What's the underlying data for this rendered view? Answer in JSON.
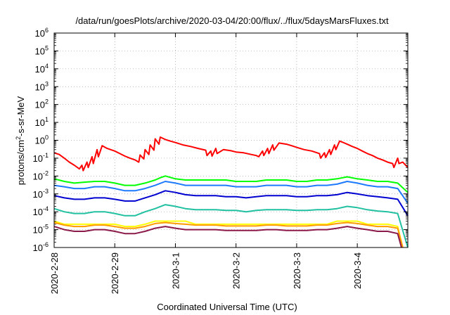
{
  "chart_data": {
    "type": "line",
    "title": "/data/run/goesPlots/archive/2020-03-04/20:00/flux/../flux/5daysMarsFluxes.txt",
    "xlabel": "Coordinated Universal Time (UTC)",
    "ylabel": {
      "prefix": "protons/cm",
      "superscript": "2",
      "suffix": "-s-sr-MeV"
    },
    "yscale": "log",
    "ylim": [
      1e-06,
      1000000.0
    ],
    "y_ticks": [
      {
        "value": 1e-06,
        "base": "10",
        "exp": "-6"
      },
      {
        "value": 1e-05,
        "base": "10",
        "exp": "-5"
      },
      {
        "value": 0.0001,
        "base": "10",
        "exp": "-4"
      },
      {
        "value": 0.001,
        "base": "10",
        "exp": "-3"
      },
      {
        "value": 0.01,
        "base": "10",
        "exp": "-2"
      },
      {
        "value": 0.1,
        "base": "10",
        "exp": "-1"
      },
      {
        "value": 1,
        "base": "10",
        "exp": "0"
      },
      {
        "value": 10.0,
        "base": "10",
        "exp": "1"
      },
      {
        "value": 100.0,
        "base": "10",
        "exp": "2"
      },
      {
        "value": 1000.0,
        "base": "10",
        "exp": "3"
      },
      {
        "value": 10000.0,
        "base": "10",
        "exp": "4"
      },
      {
        "value": 100000.0,
        "base": "10",
        "exp": "5"
      },
      {
        "value": 1000000.0,
        "base": "10",
        "exp": "6"
      }
    ],
    "xlim": [
      "2020-02-28 00:00",
      "2020-03-04 20:00"
    ],
    "x_ticks": [
      "2020-2-28",
      "2020-2-29",
      "2020-3-1",
      "2020-3-2",
      "2020-3-3",
      "2020-3-4"
    ],
    "grid": true,
    "series": [
      {
        "color": "#ff0000",
        "width": 2,
        "x": [
          "2020-02-28 00:00",
          "2020-02-28 02:00",
          "2020-02-28 04:00",
          "2020-02-28 06:00",
          "2020-02-28 08:00",
          "2020-02-28 10:00",
          "2020-02-28 11:00",
          "2020-02-28 11:30",
          "2020-02-28 13:00",
          "2020-02-28 13:30",
          "2020-02-28 15:00",
          "2020-02-28 15:30",
          "2020-02-28 17:00",
          "2020-02-28 17:30",
          "2020-02-28 19:00",
          "2020-02-28 21:00",
          "2020-02-29 00:00",
          "2020-02-29 02:00",
          "2020-02-29 04:00",
          "2020-02-29 06:00",
          "2020-02-29 08:00",
          "2020-02-29 09:30",
          "2020-02-29 10:00",
          "2020-02-29 11:30",
          "2020-02-29 12:00",
          "2020-02-29 13:30",
          "2020-02-29 14:00",
          "2020-02-29 15:30",
          "2020-02-29 16:00",
          "2020-02-29 17:30",
          "2020-02-29 18:00",
          "2020-02-29 20:00",
          "2020-02-29 22:00",
          "2020-03-01 00:00",
          "2020-03-01 03:00",
          "2020-03-01 06:00",
          "2020-03-01 09:00",
          "2020-03-01 12:00",
          "2020-03-01 12:30",
          "2020-03-01 14:00",
          "2020-03-01 14:30",
          "2020-03-01 16:00",
          "2020-03-01 16:30",
          "2020-03-01 19:00",
          "2020-03-01 22:00",
          "2020-03-02 00:00",
          "2020-03-02 03:00",
          "2020-03-02 06:00",
          "2020-03-02 08:00",
          "2020-03-02 09:00",
          "2020-03-02 10:30",
          "2020-03-02 11:00",
          "2020-03-02 12:30",
          "2020-03-02 13:00",
          "2020-03-02 14:30",
          "2020-03-02 15:00",
          "2020-03-02 17:00",
          "2020-03-02 20:00",
          "2020-03-02 22:00",
          "2020-03-03 00:00",
          "2020-03-03 03:00",
          "2020-03-03 06:00",
          "2020-03-03 09:00",
          "2020-03-03 09:30",
          "2020-03-03 11:00",
          "2020-03-03 11:30",
          "2020-03-03 13:00",
          "2020-03-03 13:30",
          "2020-03-03 15:00",
          "2020-03-03 15:30",
          "2020-03-03 17:00",
          "2020-03-03 18:00",
          "2020-03-03 20:00",
          "2020-03-03 22:00",
          "2020-03-04 00:00",
          "2020-03-04 02:00",
          "2020-03-04 04:00",
          "2020-03-04 06:00",
          "2020-03-04 08:00",
          "2020-03-04 10:00",
          "2020-03-04 12:00",
          "2020-03-04 14:00",
          "2020-03-04 14:30",
          "2020-03-04 16:00",
          "2020-03-04 16:30",
          "2020-03-04 18:00",
          "2020-03-04 20:00"
        ],
        "y": [
          0.2,
          0.16,
          0.1,
          0.06,
          0.04,
          0.025,
          0.04,
          0.02,
          0.06,
          0.03,
          0.12,
          0.05,
          0.3,
          0.12,
          0.5,
          0.35,
          0.25,
          0.18,
          0.13,
          0.1,
          0.08,
          0.06,
          0.15,
          0.09,
          0.3,
          0.16,
          0.55,
          0.28,
          1.2,
          0.6,
          1.5,
          1.1,
          0.9,
          0.75,
          0.55,
          0.45,
          0.35,
          0.28,
          0.14,
          0.25,
          0.13,
          0.35,
          0.18,
          0.3,
          0.26,
          0.22,
          0.2,
          0.16,
          0.14,
          0.12,
          0.25,
          0.14,
          0.35,
          0.18,
          0.55,
          0.28,
          0.7,
          0.6,
          0.5,
          0.4,
          0.3,
          0.25,
          0.18,
          0.1,
          0.2,
          0.11,
          0.3,
          0.16,
          0.55,
          0.3,
          0.9,
          0.8,
          0.6,
          0.45,
          0.35,
          0.25,
          0.18,
          0.14,
          0.1,
          0.08,
          0.06,
          0.05,
          0.03,
          0.1,
          0.05,
          0.06,
          0.03
        ]
      },
      {
        "color": "#00ff00",
        "width": 2,
        "x": [
          "2020-02-28 00:00",
          "2020-02-28 04:00",
          "2020-02-28 08:00",
          "2020-02-28 12:00",
          "2020-02-28 16:00",
          "2020-02-28 20:00",
          "2020-02-29 00:00",
          "2020-02-29 04:00",
          "2020-02-29 08:00",
          "2020-02-29 12:00",
          "2020-02-29 16:00",
          "2020-02-29 18:00",
          "2020-02-29 20:00",
          "2020-03-01 00:00",
          "2020-03-01 04:00",
          "2020-03-01 08:00",
          "2020-03-01 12:00",
          "2020-03-01 16:00",
          "2020-03-01 20:00",
          "2020-03-02 00:00",
          "2020-03-02 04:00",
          "2020-03-02 08:00",
          "2020-03-02 12:00",
          "2020-03-02 16:00",
          "2020-03-02 20:00",
          "2020-03-03 00:00",
          "2020-03-03 04:00",
          "2020-03-03 08:00",
          "2020-03-03 12:00",
          "2020-03-03 16:00",
          "2020-03-03 20:00",
          "2020-03-04 00:00",
          "2020-03-04 04:00",
          "2020-03-04 08:00",
          "2020-03-04 12:00",
          "2020-03-04 16:00",
          "2020-03-04 20:00"
        ],
        "y": [
          0.007,
          0.005,
          0.004,
          0.0045,
          0.005,
          0.005,
          0.004,
          0.003,
          0.003,
          0.004,
          0.006,
          0.008,
          0.01,
          0.007,
          0.006,
          0.006,
          0.006,
          0.006,
          0.006,
          0.005,
          0.005,
          0.005,
          0.006,
          0.006,
          0.006,
          0.005,
          0.005,
          0.006,
          0.006,
          0.007,
          0.009,
          0.007,
          0.006,
          0.005,
          0.005,
          0.004,
          0.0012
        ]
      },
      {
        "color": "#1e7bff",
        "width": 2,
        "x": [
          "2020-02-28 00:00",
          "2020-02-28 04:00",
          "2020-02-28 08:00",
          "2020-02-28 12:00",
          "2020-02-28 16:00",
          "2020-02-28 20:00",
          "2020-02-29 00:00",
          "2020-02-29 04:00",
          "2020-02-29 08:00",
          "2020-02-29 12:00",
          "2020-02-29 16:00",
          "2020-02-29 20:00",
          "2020-03-01 00:00",
          "2020-03-01 04:00",
          "2020-03-01 08:00",
          "2020-03-01 12:00",
          "2020-03-01 16:00",
          "2020-03-01 20:00",
          "2020-03-02 00:00",
          "2020-03-02 04:00",
          "2020-03-02 08:00",
          "2020-03-02 12:00",
          "2020-03-02 16:00",
          "2020-03-02 20:00",
          "2020-03-03 00:00",
          "2020-03-03 04:00",
          "2020-03-03 08:00",
          "2020-03-03 12:00",
          "2020-03-03 16:00",
          "2020-03-03 20:00",
          "2020-03-04 00:00",
          "2020-03-04 04:00",
          "2020-03-04 08:00",
          "2020-03-04 12:00",
          "2020-03-04 16:00",
          "2020-03-04 20:00"
        ],
        "y": [
          0.003,
          0.0025,
          0.002,
          0.002,
          0.0025,
          0.0025,
          0.002,
          0.0015,
          0.0015,
          0.002,
          0.003,
          0.005,
          0.004,
          0.003,
          0.003,
          0.003,
          0.003,
          0.003,
          0.0025,
          0.0025,
          0.0025,
          0.003,
          0.003,
          0.003,
          0.0025,
          0.0025,
          0.003,
          0.003,
          0.0035,
          0.005,
          0.004,
          0.003,
          0.0025,
          0.0025,
          0.002,
          0.0003
        ]
      },
      {
        "color": "#0000d0",
        "width": 2,
        "x": [
          "2020-02-28 00:00",
          "2020-02-28 04:00",
          "2020-02-28 08:00",
          "2020-02-28 12:00",
          "2020-02-28 16:00",
          "2020-02-28 20:00",
          "2020-02-29 00:00",
          "2020-02-29 04:00",
          "2020-02-29 08:00",
          "2020-02-29 12:00",
          "2020-02-29 16:00",
          "2020-02-29 20:00",
          "2020-03-01 00:00",
          "2020-03-01 04:00",
          "2020-03-01 08:00",
          "2020-03-01 12:00",
          "2020-03-01 16:00",
          "2020-03-01 20:00",
          "2020-03-02 00:00",
          "2020-03-02 04:00",
          "2020-03-02 08:00",
          "2020-03-02 12:00",
          "2020-03-02 16:00",
          "2020-03-02 20:00",
          "2020-03-03 00:00",
          "2020-03-03 04:00",
          "2020-03-03 08:00",
          "2020-03-03 12:00",
          "2020-03-03 16:00",
          "2020-03-03 20:00",
          "2020-03-04 00:00",
          "2020-03-04 04:00",
          "2020-03-04 08:00",
          "2020-03-04 12:00",
          "2020-03-04 16:00",
          "2020-03-04 20:00"
        ],
        "y": [
          0.0008,
          0.0006,
          0.0005,
          0.0005,
          0.0006,
          0.0006,
          0.0005,
          0.0004,
          0.0004,
          0.0006,
          0.0009,
          0.0015,
          0.0012,
          0.0009,
          0.0008,
          0.0008,
          0.0008,
          0.0007,
          0.0007,
          0.0006,
          0.0007,
          0.0008,
          0.0008,
          0.0008,
          0.0007,
          0.0007,
          0.0008,
          0.0008,
          0.0009,
          0.0012,
          0.001,
          0.0008,
          0.0007,
          0.0006,
          0.0005,
          6e-05
        ]
      },
      {
        "color": "#20c0a0",
        "width": 2,
        "x": [
          "2020-02-28 00:00",
          "2020-02-28 04:00",
          "2020-02-28 08:00",
          "2020-02-28 12:00",
          "2020-02-28 16:00",
          "2020-02-28 20:00",
          "2020-02-29 00:00",
          "2020-02-29 04:00",
          "2020-02-29 08:00",
          "2020-02-29 12:00",
          "2020-02-29 16:00",
          "2020-02-29 20:00",
          "2020-03-01 00:00",
          "2020-03-01 04:00",
          "2020-03-01 08:00",
          "2020-03-01 12:00",
          "2020-03-01 16:00",
          "2020-03-01 20:00",
          "2020-03-02 00:00",
          "2020-03-02 04:00",
          "2020-03-02 08:00",
          "2020-03-02 12:00",
          "2020-03-02 16:00",
          "2020-03-02 20:00",
          "2020-03-03 00:00",
          "2020-03-03 04:00",
          "2020-03-03 08:00",
          "2020-03-03 12:00",
          "2020-03-03 16:00",
          "2020-03-03 20:00",
          "2020-03-04 00:00",
          "2020-03-04 04:00",
          "2020-03-04 08:00",
          "2020-03-04 12:00",
          "2020-03-04 16:00",
          "2020-03-04 20:00"
        ],
        "y": [
          0.00015,
          0.0001,
          8e-05,
          8e-05,
          0.0001,
          0.0001,
          8e-05,
          6e-05,
          6e-05,
          0.0001,
          0.00015,
          0.00025,
          0.0002,
          0.00015,
          0.00013,
          0.00013,
          0.00013,
          0.00012,
          0.00012,
          0.0001,
          0.00012,
          0.00013,
          0.00013,
          0.00013,
          0.00012,
          0.00012,
          0.00013,
          0.00013,
          0.00015,
          0.0002,
          0.00017,
          0.00013,
          0.00011,
          0.0001,
          8e-05,
          1e-06
        ]
      },
      {
        "color": "#ffff00",
        "width": 2,
        "x": [
          "2020-02-28 00:00",
          "2020-02-28 04:00",
          "2020-02-28 08:00",
          "2020-02-28 12:00",
          "2020-02-28 16:00",
          "2020-02-28 20:00",
          "2020-02-29 00:00",
          "2020-02-29 04:00",
          "2020-02-29 08:00",
          "2020-02-29 12:00",
          "2020-02-29 16:00",
          "2020-02-29 20:00",
          "2020-03-01 00:00",
          "2020-03-01 04:00",
          "2020-03-01 08:00",
          "2020-03-01 12:00",
          "2020-03-01 16:00",
          "2020-03-01 20:00",
          "2020-03-02 00:00",
          "2020-03-02 04:00",
          "2020-03-02 08:00",
          "2020-03-02 12:00",
          "2020-03-02 16:00",
          "2020-03-02 20:00",
          "2020-03-03 00:00",
          "2020-03-03 04:00",
          "2020-03-03 08:00",
          "2020-03-03 12:00",
          "2020-03-03 16:00",
          "2020-03-03 20:00",
          "2020-03-04 00:00",
          "2020-03-04 04:00",
          "2020-03-04 08:00",
          "2020-03-04 12:00",
          "2020-03-04 16:00",
          "2020-03-04 18:00"
        ],
        "y": [
          3e-05,
          2e-05,
          2e-05,
          2e-05,
          2e-05,
          2e-05,
          2e-05,
          1.5e-05,
          1.5e-05,
          2e-05,
          3e-05,
          3e-05,
          3e-05,
          3e-05,
          2e-05,
          2e-05,
          2e-05,
          2e-05,
          2e-05,
          2e-05,
          2e-05,
          2e-05,
          2e-05,
          2e-05,
          2e-05,
          2e-05,
          2e-05,
          2e-05,
          3e-05,
          3e-05,
          3e-05,
          2e-05,
          2e-05,
          2e-05,
          1.5e-05,
          1e-06
        ]
      },
      {
        "color": "#ff9a00",
        "width": 2,
        "x": [
          "2020-02-28 00:00",
          "2020-02-28 04:00",
          "2020-02-28 08:00",
          "2020-02-28 12:00",
          "2020-02-28 16:00",
          "2020-02-28 20:00",
          "2020-02-29 00:00",
          "2020-02-29 04:00",
          "2020-02-29 08:00",
          "2020-02-29 12:00",
          "2020-02-29 16:00",
          "2020-02-29 20:00",
          "2020-03-01 00:00",
          "2020-03-01 04:00",
          "2020-03-01 08:00",
          "2020-03-01 12:00",
          "2020-03-01 16:00",
          "2020-03-01 20:00",
          "2020-03-02 00:00",
          "2020-03-02 04:00",
          "2020-03-02 08:00",
          "2020-03-02 12:00",
          "2020-03-02 16:00",
          "2020-03-02 20:00",
          "2020-03-03 00:00",
          "2020-03-03 04:00",
          "2020-03-03 08:00",
          "2020-03-03 12:00",
          "2020-03-03 16:00",
          "2020-03-03 20:00",
          "2020-03-04 00:00",
          "2020-03-04 04:00",
          "2020-03-04 08:00",
          "2020-03-04 12:00",
          "2020-03-04 16:00",
          "2020-03-04 18:00"
        ],
        "y": [
          2.5e-05,
          1.8e-05,
          1.5e-05,
          1.5e-05,
          1.8e-05,
          1.8e-05,
          1.5e-05,
          1.2e-05,
          1.2e-05,
          1.5e-05,
          2.2e-05,
          2.5e-05,
          2.2e-05,
          2e-05,
          1.8e-05,
          1.8e-05,
          1.8e-05,
          1.6e-05,
          1.6e-05,
          1.6e-05,
          1.6e-05,
          1.8e-05,
          1.8e-05,
          1.6e-05,
          1.6e-05,
          1.6e-05,
          1.8e-05,
          1.8e-05,
          2.2e-05,
          2.5e-05,
          2.2e-05,
          1.8e-05,
          1.5e-05,
          1.5e-05,
          1.2e-05,
          1e-06
        ]
      },
      {
        "color": "#8b1a4a",
        "width": 2,
        "x": [
          "2020-02-28 00:00",
          "2020-02-28 04:00",
          "2020-02-28 08:00",
          "2020-02-28 12:00",
          "2020-02-28 16:00",
          "2020-02-28 20:00",
          "2020-02-29 00:00",
          "2020-02-29 04:00",
          "2020-02-29 08:00",
          "2020-02-29 12:00",
          "2020-02-29 16:00",
          "2020-02-29 20:00",
          "2020-03-01 00:00",
          "2020-03-01 04:00",
          "2020-03-01 08:00",
          "2020-03-01 12:00",
          "2020-03-01 16:00",
          "2020-03-01 20:00",
          "2020-03-02 00:00",
          "2020-03-02 04:00",
          "2020-03-02 08:00",
          "2020-03-02 12:00",
          "2020-03-02 16:00",
          "2020-03-02 20:00",
          "2020-03-03 00:00",
          "2020-03-03 04:00",
          "2020-03-03 08:00",
          "2020-03-03 12:00",
          "2020-03-03 16:00",
          "2020-03-03 20:00",
          "2020-03-04 00:00",
          "2020-03-04 04:00",
          "2020-03-04 08:00",
          "2020-03-04 12:00",
          "2020-03-04 16:00",
          "2020-03-04 17:30"
        ],
        "y": [
          1.5e-05,
          1e-05,
          8e-06,
          8e-06,
          1e-05,
          1e-05,
          8e-06,
          6e-06,
          6e-06,
          8e-06,
          1.2e-05,
          1.5e-05,
          1.2e-05,
          1e-05,
          1e-05,
          1e-05,
          1e-05,
          9e-06,
          9e-06,
          9e-06,
          9e-06,
          1e-05,
          1e-05,
          9e-06,
          9e-06,
          9e-06,
          1e-05,
          1e-05,
          1.2e-05,
          1.5e-05,
          1.2e-05,
          1e-05,
          8e-06,
          8e-06,
          6e-06,
          1e-06
        ]
      }
    ]
  }
}
